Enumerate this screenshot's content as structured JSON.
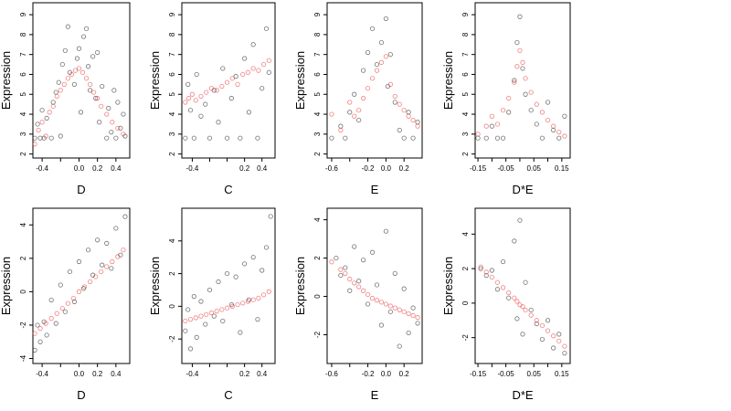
{
  "chart_data": [
    {
      "type": "scatter",
      "xlabel": "D",
      "ylabel": "Expression",
      "xlim": [
        -0.5,
        0.55
      ],
      "ylim": [
        1.8,
        9.6
      ],
      "xticks": [
        -0.4,
        -0.2,
        0.0,
        0.2,
        0.4
      ],
      "xtick_labels": [
        "-0.4",
        "",
        "0.0",
        "0.2",
        "0.4"
      ],
      "yticks": [
        2,
        3,
        4,
        5,
        6,
        7,
        8,
        9
      ],
      "ytick_labels": [
        "2",
        "3",
        "4",
        "5",
        "6",
        "7",
        "8",
        "9"
      ],
      "series": [
        {
          "color": "#000000",
          "x": [
            -0.48,
            -0.45,
            -0.42,
            -0.4,
            -0.38,
            -0.35,
            -0.3,
            -0.28,
            -0.25,
            -0.22,
            -0.2,
            -0.18,
            -0.15,
            -0.12,
            -0.1,
            -0.05,
            -0.02,
            0.0,
            0.02,
            0.05,
            0.08,
            0.1,
            0.12,
            0.15,
            0.18,
            0.2,
            0.22,
            0.25,
            0.3,
            0.32,
            0.35,
            0.38,
            0.4,
            0.42,
            0.45,
            0.48,
            0.5
          ],
          "y": [
            2.8,
            3.5,
            2.8,
            4.2,
            2.8,
            3.8,
            2.8,
            4.6,
            5.1,
            5.6,
            2.9,
            6.5,
            7.2,
            8.4,
            6.1,
            5.5,
            6.8,
            7.3,
            4.1,
            7.9,
            8.3,
            6.4,
            5.2,
            6.9,
            4.8,
            7.1,
            3.6,
            5.4,
            2.8,
            4.3,
            3.1,
            5.2,
            2.8,
            4.6,
            3.3,
            4.0,
            2.9
          ]
        },
        {
          "color": "#e41a1c",
          "x": [
            -0.48,
            -0.44,
            -0.4,
            -0.36,
            -0.32,
            -0.28,
            -0.24,
            -0.2,
            -0.16,
            -0.12,
            -0.08,
            -0.04,
            0.0,
            0.04,
            0.08,
            0.12,
            0.16,
            0.2,
            0.24,
            0.3,
            0.36,
            0.42,
            0.48
          ],
          "y": [
            2.5,
            3.2,
            3.6,
            2.9,
            4.1,
            4.4,
            4.9,
            5.2,
            5.5,
            5.8,
            6.0,
            6.2,
            6.3,
            6.1,
            5.8,
            5.5,
            5.1,
            4.8,
            4.4,
            4.0,
            3.6,
            3.3,
            3.0
          ]
        }
      ]
    },
    {
      "type": "scatter",
      "xlabel": "C",
      "ylabel": "Expression",
      "xlim": [
        -0.52,
        0.55
      ],
      "ylim": [
        1.8,
        9.6
      ],
      "xticks": [
        -0.4,
        -0.2,
        0.0,
        0.2,
        0.4
      ],
      "xtick_labels": [
        "-0.4",
        "",
        "",
        "0.2",
        "0.4"
      ],
      "yticks": [
        2,
        3,
        4,
        5,
        6,
        7,
        8,
        9
      ],
      "ytick_labels": [
        "2",
        "3",
        "4",
        "5",
        "6",
        "7",
        "8",
        "9"
      ],
      "series": [
        {
          "color": "#000000",
          "x": [
            -0.48,
            -0.45,
            -0.42,
            -0.38,
            -0.35,
            -0.3,
            -0.25,
            -0.2,
            -0.15,
            -0.1,
            -0.05,
            0.0,
            0.05,
            0.1,
            0.15,
            0.2,
            0.25,
            0.3,
            0.35,
            0.4,
            0.45,
            0.48
          ],
          "y": [
            2.8,
            5.5,
            4.2,
            2.8,
            6.0,
            3.9,
            4.5,
            2.8,
            5.2,
            3.6,
            6.3,
            2.8,
            4.8,
            5.9,
            2.8,
            6.8,
            4.1,
            7.5,
            2.8,
            5.3,
            8.3,
            6.1
          ]
        },
        {
          "color": "#e41a1c",
          "x": [
            -0.48,
            -0.44,
            -0.4,
            -0.36,
            -0.3,
            -0.24,
            -0.18,
            -0.12,
            -0.06,
            0.0,
            0.06,
            0.12,
            0.18,
            0.24,
            0.3,
            0.36,
            0.42,
            0.48
          ],
          "y": [
            4.6,
            4.8,
            5.0,
            4.7,
            4.9,
            5.1,
            5.3,
            5.2,
            5.4,
            5.6,
            5.8,
            5.5,
            6.0,
            6.1,
            6.3,
            6.2,
            6.5,
            6.7
          ]
        }
      ]
    },
    {
      "type": "scatter",
      "xlabel": "E",
      "ylabel": "Expression",
      "xlim": [
        -0.65,
        0.4
      ],
      "ylim": [
        1.8,
        9.6
      ],
      "xticks": [
        -0.6,
        -0.4,
        -0.2,
        0.0,
        0.2
      ],
      "xtick_labels": [
        "-0.6",
        "",
        "-0.2",
        "0.0",
        "0.2"
      ],
      "yticks": [
        2,
        3,
        4,
        5,
        6,
        7,
        8,
        9
      ],
      "ytick_labels": [
        "2",
        "3",
        "4",
        "5",
        "6",
        "7",
        "8",
        "9"
      ],
      "series": [
        {
          "color": "#000000",
          "x": [
            -0.6,
            -0.5,
            -0.45,
            -0.4,
            -0.35,
            -0.3,
            -0.25,
            -0.2,
            -0.15,
            -0.1,
            -0.05,
            0.0,
            0.02,
            0.05,
            0.1,
            0.15,
            0.2,
            0.25,
            0.3,
            0.35
          ],
          "y": [
            2.8,
            3.4,
            2.8,
            4.1,
            5.0,
            3.7,
            6.2,
            7.1,
            8.3,
            6.5,
            7.6,
            8.8,
            5.4,
            7.0,
            4.6,
            3.2,
            2.8,
            4.1,
            2.8,
            3.6
          ]
        },
        {
          "color": "#e41a1c",
          "x": [
            -0.6,
            -0.5,
            -0.4,
            -0.35,
            -0.3,
            -0.25,
            -0.2,
            -0.15,
            -0.1,
            -0.05,
            0.0,
            0.05,
            0.1,
            0.15,
            0.2,
            0.25,
            0.3,
            0.35
          ],
          "y": [
            4.0,
            3.2,
            4.6,
            3.9,
            4.2,
            4.8,
            5.3,
            5.8,
            6.2,
            6.6,
            6.9,
            5.5,
            4.9,
            4.5,
            4.2,
            3.9,
            3.7,
            3.4
          ]
        }
      ]
    },
    {
      "type": "scatter",
      "xlabel": "D*E",
      "ylabel": "Expression",
      "xlim": [
        -0.16,
        0.18
      ],
      "ylim": [
        1.8,
        9.6
      ],
      "xticks": [
        -0.15,
        -0.1,
        -0.05,
        0.0,
        0.05,
        0.1,
        0.15
      ],
      "xtick_labels": [
        "-0.15",
        "",
        "-0.05",
        "",
        "0.05",
        "",
        "0.15"
      ],
      "yticks": [
        2,
        3,
        4,
        5,
        6,
        7,
        8,
        9
      ],
      "ytick_labels": [
        "2",
        "3",
        "4",
        "5",
        "6",
        "7",
        "8",
        "9"
      ],
      "series": [
        {
          "color": "#000000",
          "x": [
            -0.15,
            -0.12,
            -0.1,
            -0.08,
            -0.06,
            -0.04,
            -0.02,
            -0.01,
            0.0,
            0.01,
            0.02,
            0.04,
            0.06,
            0.08,
            0.1,
            0.12,
            0.14,
            0.16
          ],
          "y": [
            2.8,
            2.8,
            3.4,
            2.8,
            2.8,
            4.1,
            5.7,
            7.6,
            8.9,
            6.3,
            5.0,
            4.2,
            3.5,
            2.8,
            4.6,
            3.2,
            2.8,
            3.9
          ]
        },
        {
          "color": "#e41a1c",
          "x": [
            -0.15,
            -0.12,
            -0.1,
            -0.08,
            -0.06,
            -0.04,
            -0.02,
            -0.01,
            0.0,
            0.01,
            0.02,
            0.04,
            0.06,
            0.08,
            0.1,
            0.12,
            0.14,
            0.16
          ],
          "y": [
            3.0,
            3.4,
            3.9,
            3.5,
            4.2,
            4.8,
            5.6,
            6.4,
            7.2,
            6.6,
            5.8,
            5.1,
            4.5,
            4.1,
            3.7,
            3.4,
            3.1,
            2.9
          ]
        }
      ]
    },
    {
      "type": "scatter",
      "xlabel": "D",
      "ylabel": "Expression",
      "xlim": [
        -0.5,
        0.55
      ],
      "ylim": [
        -4.3,
        5.0
      ],
      "xticks": [
        -0.4,
        -0.2,
        0.0,
        0.2,
        0.4
      ],
      "xtick_labels": [
        "-0.4",
        "",
        "0.0",
        "0.2",
        "0.4"
      ],
      "yticks": [
        -4,
        -2,
        0,
        2,
        4
      ],
      "ytick_labels": [
        "-4",
        "-2",
        "0",
        "2",
        "4"
      ],
      "series": [
        {
          "color": "#000000",
          "x": [
            -0.48,
            -0.45,
            -0.42,
            -0.38,
            -0.35,
            -0.3,
            -0.25,
            -0.2,
            -0.15,
            -0.1,
            -0.05,
            0.0,
            0.05,
            0.1,
            0.15,
            0.2,
            0.25,
            0.3,
            0.35,
            0.4,
            0.45,
            0.5
          ],
          "y": [
            -3.5,
            -2.0,
            -3.0,
            -1.8,
            -2.6,
            -0.5,
            -1.9,
            0.4,
            -1.2,
            1.2,
            -0.6,
            1.8,
            0.2,
            2.5,
            1.0,
            3.1,
            1.6,
            2.9,
            1.4,
            3.8,
            2.2,
            4.5
          ]
        },
        {
          "color": "#e41a1c",
          "x": [
            -0.48,
            -0.42,
            -0.36,
            -0.3,
            -0.24,
            -0.18,
            -0.12,
            -0.06,
            0.0,
            0.06,
            0.12,
            0.18,
            0.24,
            0.3,
            0.36,
            0.42,
            0.48
          ],
          "y": [
            -2.5,
            -2.2,
            -1.9,
            -1.6,
            -1.3,
            -1.0,
            -0.7,
            -0.4,
            0.0,
            0.3,
            0.6,
            0.9,
            1.2,
            1.5,
            1.8,
            2.1,
            2.5
          ]
        }
      ]
    },
    {
      "type": "scatter",
      "xlabel": "C",
      "ylabel": "Expression",
      "xlim": [
        -0.52,
        0.55
      ],
      "ylim": [
        -3.5,
        6.0
      ],
      "xticks": [
        -0.4,
        -0.2,
        0.0,
        0.2,
        0.4
      ],
      "xtick_labels": [
        "-0.4",
        "",
        "",
        "0.2",
        "0.4"
      ],
      "yticks": [
        -2,
        0,
        2,
        4
      ],
      "ytick_labels": [
        "-2",
        "0",
        "2",
        "4"
      ],
      "series": [
        {
          "color": "#000000",
          "x": [
            -0.48,
            -0.45,
            -0.42,
            -0.38,
            -0.35,
            -0.3,
            -0.25,
            -0.2,
            -0.15,
            -0.1,
            -0.05,
            0.0,
            0.05,
            0.1,
            0.15,
            0.2,
            0.25,
            0.3,
            0.35,
            0.4,
            0.45,
            0.5
          ],
          "y": [
            -1.5,
            -0.2,
            -2.6,
            0.6,
            -1.9,
            0.3,
            -1.1,
            1.0,
            -0.6,
            1.5,
            -0.9,
            2.0,
            0.1,
            1.8,
            -1.6,
            2.6,
            0.4,
            3.0,
            -0.8,
            2.2,
            3.6,
            5.5
          ]
        },
        {
          "color": "#e41a1c",
          "x": [
            -0.48,
            -0.42,
            -0.36,
            -0.3,
            -0.24,
            -0.18,
            -0.12,
            -0.06,
            0.0,
            0.06,
            0.12,
            0.18,
            0.24,
            0.3,
            0.36,
            0.42,
            0.48
          ],
          "y": [
            -0.9,
            -0.8,
            -0.7,
            -0.6,
            -0.5,
            -0.4,
            -0.3,
            -0.2,
            -0.1,
            0.0,
            0.1,
            0.2,
            0.3,
            0.4,
            0.5,
            0.7,
            0.9
          ]
        }
      ]
    },
    {
      "type": "scatter",
      "xlabel": "E",
      "ylabel": "Expression",
      "xlim": [
        -0.65,
        0.4
      ],
      "ylim": [
        -3.5,
        4.6
      ],
      "xticks": [
        -0.6,
        -0.4,
        -0.2,
        0.0,
        0.2
      ],
      "xtick_labels": [
        "-0.6",
        "",
        "-0.2",
        "0.0",
        "0.2"
      ],
      "yticks": [
        -2,
        0,
        2,
        4
      ],
      "ytick_labels": [
        "-2",
        "0",
        "2",
        "4"
      ],
      "series": [
        {
          "color": "#000000",
          "x": [
            -0.55,
            -0.5,
            -0.45,
            -0.4,
            -0.35,
            -0.3,
            -0.25,
            -0.2,
            -0.15,
            -0.1,
            -0.05,
            0.0,
            0.05,
            0.1,
            0.15,
            0.2,
            0.25,
            0.3,
            0.35
          ],
          "y": [
            2.0,
            1.1,
            1.5,
            0.3,
            2.6,
            0.8,
            1.9,
            -0.4,
            2.3,
            0.6,
            -1.5,
            3.4,
            -0.8,
            1.2,
            -2.6,
            0.4,
            -1.9,
            -0.6,
            -1.4
          ]
        },
        {
          "color": "#e41a1c",
          "x": [
            -0.6,
            -0.5,
            -0.45,
            -0.4,
            -0.35,
            -0.3,
            -0.25,
            -0.2,
            -0.15,
            -0.1,
            -0.05,
            0.0,
            0.05,
            0.1,
            0.15,
            0.2,
            0.25,
            0.3,
            0.35
          ],
          "y": [
            1.8,
            1.4,
            1.2,
            0.9,
            0.7,
            0.5,
            0.3,
            0.1,
            -0.1,
            -0.2,
            -0.3,
            -0.4,
            -0.5,
            -0.6,
            -0.7,
            -0.8,
            -0.9,
            -1.0,
            -1.1
          ]
        }
      ]
    },
    {
      "type": "scatter",
      "xlabel": "D*E",
      "ylabel": "Expression",
      "xlim": [
        -0.16,
        0.18
      ],
      "ylim": [
        -3.5,
        5.5
      ],
      "xticks": [
        -0.15,
        -0.1,
        -0.05,
        0.0,
        0.05,
        0.1,
        0.15
      ],
      "xtick_labels": [
        "-0.15",
        "",
        "-0.05",
        "",
        "0.05",
        "",
        "0.15"
      ],
      "yticks": [
        -2,
        0,
        2,
        4
      ],
      "ytick_labels": [
        "-2",
        "0",
        "2",
        "4"
      ],
      "series": [
        {
          "color": "#000000",
          "x": [
            -0.14,
            -0.12,
            -0.1,
            -0.08,
            -0.06,
            -0.04,
            -0.02,
            -0.01,
            0.0,
            0.01,
            0.02,
            0.04,
            0.06,
            0.08,
            0.1,
            0.12,
            0.14,
            0.16
          ],
          "y": [
            2.0,
            1.6,
            1.9,
            0.8,
            2.4,
            0.3,
            3.6,
            -0.9,
            4.8,
            -1.8,
            1.2,
            -0.4,
            -1.2,
            -2.1,
            -1.0,
            -2.6,
            -1.8,
            -2.9
          ]
        },
        {
          "color": "#e41a1c",
          "x": [
            -0.14,
            -0.12,
            -0.1,
            -0.08,
            -0.06,
            -0.04,
            -0.02,
            -0.01,
            0.0,
            0.01,
            0.02,
            0.04,
            0.06,
            0.08,
            0.1,
            0.12,
            0.14,
            0.16
          ],
          "y": [
            2.1,
            1.8,
            1.5,
            1.2,
            0.9,
            0.6,
            0.3,
            0.1,
            -0.1,
            -0.2,
            -0.4,
            -0.7,
            -1.0,
            -1.3,
            -1.6,
            -1.9,
            -2.2,
            -2.5
          ]
        }
      ]
    }
  ]
}
